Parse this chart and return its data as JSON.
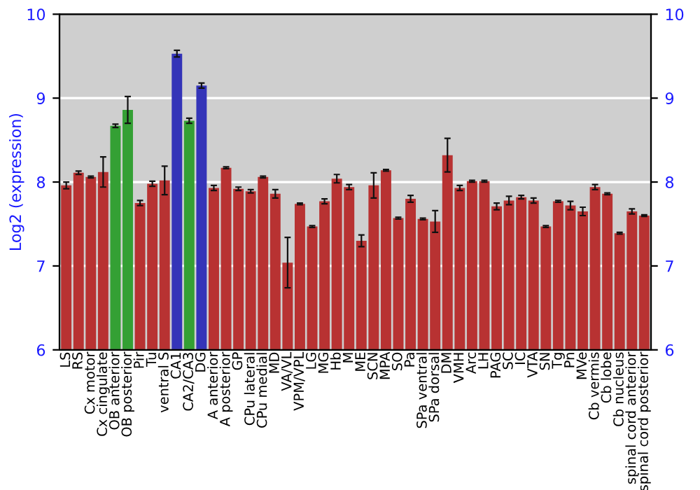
{
  "chart_data": {
    "type": "bar",
    "ylabel": "Log2 (expression)",
    "categories": [
      "LS",
      "RS",
      "Cx motor",
      "Cx cingulate",
      "OB anterior",
      "OB posterior",
      "Pir",
      "Tu",
      "ventral S",
      "CA1",
      "CA2/CA3",
      "DG",
      "A anterior",
      "A posterior",
      "GP",
      "CPu lateral",
      "CPu medial",
      "MD",
      "VA/VL",
      "VPM/VPL",
      "LG",
      "MG",
      "Hb",
      "M",
      "ME",
      "SCN",
      "MPA",
      "SO",
      "Pa",
      "SPa ventral",
      "SPa dorsal",
      "DM",
      "VMH",
      "Arc",
      "LH",
      "PAG",
      "SC",
      "IC",
      "VTA",
      "SN",
      "Tg",
      "Pn",
      "MVe",
      "Cb vermis",
      "Cb lobe",
      "Cb nucleus",
      "spinal cord anterior",
      "spinal cord posterior"
    ],
    "values": [
      7.96,
      8.11,
      8.06,
      8.12,
      8.67,
      8.86,
      7.75,
      7.98,
      8.02,
      9.53,
      8.73,
      9.15,
      7.93,
      8.17,
      7.92,
      7.89,
      8.06,
      7.86,
      7.04,
      7.74,
      7.47,
      7.77,
      8.04,
      7.94,
      7.3,
      7.96,
      8.14,
      7.57,
      7.8,
      7.56,
      7.53,
      8.32,
      7.93,
      8.01,
      8.01,
      7.71,
      7.78,
      7.82,
      7.78,
      7.47,
      7.77,
      7.72,
      7.65,
      7.94,
      7.86,
      7.39,
      7.65,
      7.6
    ],
    "errors": [
      0.04,
      0.02,
      0.01,
      0.18,
      0.02,
      0.16,
      0.03,
      0.03,
      0.17,
      0.04,
      0.03,
      0.03,
      0.03,
      0.01,
      0.02,
      0.02,
      0.01,
      0.05,
      0.3,
      0.01,
      0.01,
      0.03,
      0.05,
      0.03,
      0.07,
      0.15,
      0.01,
      0.01,
      0.04,
      0.01,
      0.13,
      0.2,
      0.03,
      0.01,
      0.01,
      0.04,
      0.05,
      0.02,
      0.03,
      0.01,
      0.01,
      0.05,
      0.05,
      0.03,
      0.01,
      0.01,
      0.03,
      0.01
    ],
    "colors": [
      "#b83232",
      "#b83232",
      "#b83232",
      "#b83232",
      "#34a034",
      "#34a034",
      "#b83232",
      "#b83232",
      "#b83232",
      "#3434b8",
      "#34a034",
      "#3434b8",
      "#b83232",
      "#b83232",
      "#b83232",
      "#b83232",
      "#b83232",
      "#b83232",
      "#b83232",
      "#b83232",
      "#b83232",
      "#b83232",
      "#b83232",
      "#b83232",
      "#b83232",
      "#b83232",
      "#b83232",
      "#b83232",
      "#b83232",
      "#b83232",
      "#b83232",
      "#b83232",
      "#b83232",
      "#b83232",
      "#b83232",
      "#b83232",
      "#b83232",
      "#b83232",
      "#b83232",
      "#b83232",
      "#b83232",
      "#b83232",
      "#b83232",
      "#b83232",
      "#b83232",
      "#b83232",
      "#b83232",
      "#b83232"
    ],
    "ylim": [
      6,
      10
    ],
    "yticks": [
      6,
      7,
      8,
      9,
      10
    ],
    "y2lim": [
      6,
      10
    ],
    "y2ticks": [
      6,
      7,
      8,
      9,
      10
    ],
    "grid": "y",
    "legend": false
  }
}
